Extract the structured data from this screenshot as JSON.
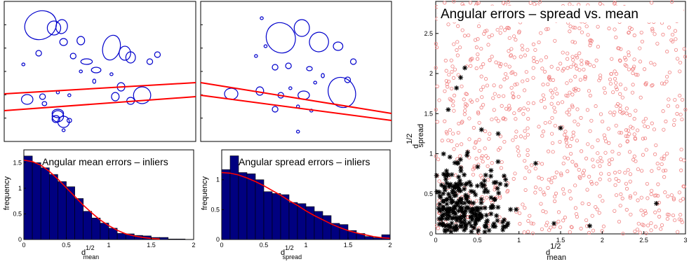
{
  "colors": {
    "ellipse": "#0000cc",
    "line": "#ff0000",
    "bar": "#000080",
    "bar_edge": "#000000",
    "outlier": "#f08080",
    "inlier": "#000000"
  },
  "chart_data": [
    {
      "id": "ellipses-left",
      "type": "scatter",
      "title": "",
      "xlabel": "",
      "ylabel": "",
      "xlim": [
        0,
        1
      ],
      "ylim": [
        0,
        1
      ],
      "ellipses": [
        {
          "cx": 0.19,
          "cy": 0.83,
          "rx": 0.085,
          "ry": 0.1,
          "rot": -25
        },
        {
          "cx": 0.26,
          "cy": 0.81,
          "rx": 0.035,
          "ry": 0.05,
          "rot": 0
        },
        {
          "cx": 0.3,
          "cy": 0.82,
          "rx": 0.03,
          "ry": 0.05,
          "rot": 10
        },
        {
          "cx": 0.31,
          "cy": 0.71,
          "rx": 0.02,
          "ry": 0.025,
          "rot": 0
        },
        {
          "cx": 0.4,
          "cy": 0.72,
          "rx": 0.02,
          "ry": 0.03,
          "rot": 0
        },
        {
          "cx": 0.36,
          "cy": 0.61,
          "rx": 0.015,
          "ry": 0.02,
          "rot": 0
        },
        {
          "cx": 0.18,
          "cy": 0.63,
          "rx": 0.015,
          "ry": 0.02,
          "rot": 0
        },
        {
          "cx": 0.1,
          "cy": 0.55,
          "rx": 0.008,
          "ry": 0.01,
          "rot": 0
        },
        {
          "cx": 0.56,
          "cy": 0.67,
          "rx": 0.045,
          "ry": 0.09,
          "rot": 15
        },
        {
          "cx": 0.63,
          "cy": 0.63,
          "rx": 0.03,
          "ry": 0.05,
          "rot": 0
        },
        {
          "cx": 0.66,
          "cy": 0.6,
          "rx": 0.025,
          "ry": 0.04,
          "rot": 0
        },
        {
          "cx": 0.76,
          "cy": 0.57,
          "rx": 0.015,
          "ry": 0.02,
          "rot": 0
        },
        {
          "cx": 0.8,
          "cy": 0.62,
          "rx": 0.015,
          "ry": 0.02,
          "rot": 0
        },
        {
          "cx": 0.43,
          "cy": 0.57,
          "rx": 0.03,
          "ry": 0.02,
          "rot": 0
        },
        {
          "cx": 0.48,
          "cy": 0.51,
          "rx": 0.025,
          "ry": 0.02,
          "rot": 0
        },
        {
          "cx": 0.4,
          "cy": 0.5,
          "rx": 0.008,
          "ry": 0.01,
          "rot": 0
        },
        {
          "cx": 0.56,
          "cy": 0.48,
          "rx": 0.008,
          "ry": 0.01,
          "rot": 0
        },
        {
          "cx": 0.47,
          "cy": 0.43,
          "rx": 0.008,
          "ry": 0.015,
          "rot": 0
        },
        {
          "cx": 0.61,
          "cy": 0.39,
          "rx": 0.02,
          "ry": 0.03,
          "rot": 0
        },
        {
          "cx": 0.66,
          "cy": 0.29,
          "rx": 0.02,
          "ry": 0.025,
          "rot": 0
        },
        {
          "cx": 0.72,
          "cy": 0.33,
          "rx": 0.045,
          "ry": 0.06,
          "rot": 0
        },
        {
          "cx": 0.58,
          "cy": 0.32,
          "rx": 0.02,
          "ry": 0.03,
          "rot": 0
        },
        {
          "cx": 0.12,
          "cy": 0.3,
          "rx": 0.03,
          "ry": 0.035,
          "rot": 0
        },
        {
          "cx": 0.2,
          "cy": 0.32,
          "rx": 0.015,
          "ry": 0.02,
          "rot": 0
        },
        {
          "cx": 0.21,
          "cy": 0.27,
          "rx": 0.012,
          "ry": 0.015,
          "rot": 0
        },
        {
          "cx": 0.28,
          "cy": 0.35,
          "rx": 0.008,
          "ry": 0.01,
          "rot": 0
        },
        {
          "cx": 0.34,
          "cy": 0.33,
          "rx": 0.008,
          "ry": 0.01,
          "rot": 0
        },
        {
          "cx": 0.27,
          "cy": 0.16,
          "rx": 0.02,
          "ry": 0.025,
          "rot": 0
        },
        {
          "cx": 0.34,
          "cy": 0.15,
          "rx": 0.012,
          "ry": 0.015,
          "rot": 0
        },
        {
          "cx": 0.31,
          "cy": 0.08,
          "rx": 0.008,
          "ry": 0.01,
          "rot": 0
        },
        {
          "cx": 0.28,
          "cy": 0.18,
          "rx": 0.03,
          "ry": 0.04,
          "rot": 0
        },
        {
          "cx": 0.31,
          "cy": 0.14,
          "rx": 0.03,
          "ry": 0.04,
          "rot": 0
        },
        {
          "cx": 0.28,
          "cy": 0.2,
          "rx": 0.03,
          "ry": 0.03,
          "rot": 0
        }
      ],
      "lines": [
        {
          "x": [
            0,
            1
          ],
          "y": [
            0.34,
            0.42
          ]
        },
        {
          "x": [
            0,
            1
          ],
          "y": [
            0.22,
            0.32
          ]
        }
      ]
    },
    {
      "id": "ellipses-right",
      "type": "scatter",
      "title": "",
      "xlabel": "",
      "ylabel": "",
      "xlim": [
        0,
        1
      ],
      "ylim": [
        0,
        1
      ],
      "ellipses": [
        {
          "cx": 0.32,
          "cy": 0.88,
          "rx": 0.008,
          "ry": 0.01,
          "rot": 0
        },
        {
          "cx": 0.42,
          "cy": 0.74,
          "rx": 0.075,
          "ry": 0.11,
          "rot": -30
        },
        {
          "cx": 0.53,
          "cy": 0.81,
          "rx": 0.04,
          "ry": 0.06,
          "rot": 0
        },
        {
          "cx": 0.62,
          "cy": 0.71,
          "rx": 0.05,
          "ry": 0.07,
          "rot": 20
        },
        {
          "cx": 0.72,
          "cy": 0.68,
          "rx": 0.025,
          "ry": 0.03,
          "rot": 0
        },
        {
          "cx": 0.8,
          "cy": 0.57,
          "rx": 0.015,
          "ry": 0.02,
          "rot": 0
        },
        {
          "cx": 0.34,
          "cy": 0.68,
          "rx": 0.008,
          "ry": 0.01,
          "rot": 0
        },
        {
          "cx": 0.29,
          "cy": 0.61,
          "rx": 0.008,
          "ry": 0.01,
          "rot": 0
        },
        {
          "cx": 0.39,
          "cy": 0.53,
          "rx": 0.015,
          "ry": 0.02,
          "rot": 0
        },
        {
          "cx": 0.46,
          "cy": 0.54,
          "rx": 0.015,
          "ry": 0.02,
          "rot": 0
        },
        {
          "cx": 0.57,
          "cy": 0.52,
          "rx": 0.015,
          "ry": 0.015,
          "rot": 0
        },
        {
          "cx": 0.64,
          "cy": 0.47,
          "rx": 0.008,
          "ry": 0.015,
          "rot": 0
        },
        {
          "cx": 0.74,
          "cy": 0.35,
          "rx": 0.07,
          "ry": 0.11,
          "rot": -25
        },
        {
          "cx": 0.16,
          "cy": 0.34,
          "rx": 0.035,
          "ry": 0.04,
          "rot": 0
        },
        {
          "cx": 0.31,
          "cy": 0.36,
          "rx": 0.02,
          "ry": 0.03,
          "rot": 0
        },
        {
          "cx": 0.42,
          "cy": 0.33,
          "rx": 0.015,
          "ry": 0.02,
          "rot": 0
        },
        {
          "cx": 0.47,
          "cy": 0.38,
          "rx": 0.008,
          "ry": 0.01,
          "rot": 0
        },
        {
          "cx": 0.54,
          "cy": 0.33,
          "rx": 0.03,
          "ry": 0.03,
          "rot": 0
        },
        {
          "cx": 0.6,
          "cy": 0.42,
          "rx": 0.008,
          "ry": 0.01,
          "rot": 0
        },
        {
          "cx": 0.39,
          "cy": 0.23,
          "rx": 0.015,
          "ry": 0.02,
          "rot": 0
        },
        {
          "cx": 0.51,
          "cy": 0.25,
          "rx": 0.008,
          "ry": 0.01,
          "rot": 0
        },
        {
          "cx": 0.58,
          "cy": 0.22,
          "rx": 0.008,
          "ry": 0.01,
          "rot": 0
        },
        {
          "cx": 0.51,
          "cy": 0.07,
          "rx": 0.008,
          "ry": 0.01,
          "rot": 0
        },
        {
          "cx": 0.77,
          "cy": 0.44,
          "rx": 0.015,
          "ry": 0.02,
          "rot": 0
        }
      ],
      "lines": [
        {
          "x": [
            0,
            1
          ],
          "y": [
            0.42,
            0.2
          ]
        },
        {
          "x": [
            0,
            1
          ],
          "y": [
            0.33,
            0.15
          ]
        }
      ]
    },
    {
      "id": "hist-mean",
      "type": "bar",
      "title": "Angular mean errors – inliers",
      "xlabel": "d",
      "xlabel_sup": "1/2",
      "xlabel_sub": "mean",
      "ylabel": "frequency",
      "xlim": [
        0,
        2
      ],
      "ylim": [
        0,
        1.75
      ],
      "xticks": [
        "0",
        "0.5",
        "1",
        "1.5",
        "2"
      ],
      "yticks": [
        "0",
        "0.5",
        "1",
        "1.5"
      ],
      "bin_width": 0.1,
      "bins": [
        0.05,
        0.15,
        0.25,
        0.35,
        0.45,
        0.55,
        0.65,
        0.75,
        0.85,
        0.95,
        1.05,
        1.15,
        1.25,
        1.35,
        1.45,
        1.55,
        1.65,
        1.75,
        1.85,
        1.95
      ],
      "values": [
        1.63,
        1.5,
        1.4,
        1.27,
        1.13,
        1.03,
        0.8,
        0.55,
        0.42,
        0.32,
        0.22,
        0.12,
        0.11,
        0.08,
        0.07,
        0.04,
        0.04,
        0.01,
        0.01,
        0
      ],
      "fit_curve": {
        "x": [
          0,
          0.1,
          0.2,
          0.3,
          0.4,
          0.5,
          0.6,
          0.7,
          0.8,
          0.9,
          1.0,
          1.1,
          1.2,
          1.3,
          1.4,
          1.5,
          1.6
        ],
        "y": [
          1.55,
          1.52,
          1.45,
          1.33,
          1.18,
          1.01,
          0.84,
          0.67,
          0.52,
          0.38,
          0.27,
          0.18,
          0.11,
          0.07,
          0.04,
          0.02,
          0.01
        ]
      }
    },
    {
      "id": "hist-spread",
      "type": "bar",
      "title": "Angular spread errors – inliers",
      "xlabel": "d",
      "xlabel_sup": "1/2",
      "xlabel_sub": "spread",
      "ylabel": "frequency",
      "xlim": [
        0,
        2
      ],
      "ylim": [
        0,
        1.5
      ],
      "xticks": [
        "0",
        "0.5",
        "1",
        "1.5",
        "2"
      ],
      "yticks": [
        "0",
        "0.5",
        "1"
      ],
      "bin_width": 0.1,
      "bins": [
        0.05,
        0.15,
        0.25,
        0.35,
        0.45,
        0.55,
        0.65,
        0.75,
        0.85,
        0.95,
        1.05,
        1.15,
        1.25,
        1.35,
        1.45,
        1.55,
        1.65,
        1.75,
        1.85,
        1.95
      ],
      "values": [
        1.17,
        1.4,
        1.12,
        1.1,
        1.0,
        0.8,
        0.77,
        0.75,
        0.62,
        0.6,
        0.55,
        0.47,
        0.4,
        0.27,
        0.25,
        0.15,
        0.1,
        0.05,
        0.03,
        0.08
      ],
      "fit_curve": {
        "x": [
          0,
          0.1,
          0.2,
          0.3,
          0.4,
          0.5,
          0.6,
          0.7,
          0.8,
          0.9,
          1.0,
          1.1,
          1.2,
          1.3,
          1.4,
          1.5,
          1.6,
          1.7,
          1.8,
          1.9,
          2.0
        ],
        "y": [
          1.12,
          1.11,
          1.08,
          1.03,
          0.97,
          0.9,
          0.82,
          0.74,
          0.65,
          0.57,
          0.48,
          0.4,
          0.33,
          0.26,
          0.2,
          0.15,
          0.11,
          0.08,
          0.05,
          0.03,
          0.02
        ]
      }
    },
    {
      "id": "scatter-spread-vs-mean",
      "type": "scatter",
      "title": "Angular errors – spread vs. mean",
      "xlabel": "d",
      "xlabel_sup": "1/2",
      "xlabel_sub": "mean",
      "ylabel": "d",
      "ylabel_sup": "1/2",
      "ylabel_sub": "spread",
      "xlim": [
        0,
        3
      ],
      "ylim": [
        0,
        2.9
      ],
      "xticks": [
        "0",
        "0.5",
        "1",
        "1.5",
        "2",
        "2.5",
        "3"
      ],
      "yticks": [
        "0",
        "0.5",
        "1",
        "1.5",
        "2",
        "2.5"
      ],
      "series": [
        {
          "marker": "circle",
          "count": 900,
          "seed": 7,
          "x_range": [
            0,
            3
          ],
          "y_range": [
            0,
            2.9
          ]
        },
        {
          "marker": "star",
          "count": 260,
          "seed": 11,
          "x_scale": 0.55,
          "y_scale": 0.55,
          "x_max": 1.6,
          "y_max": 1.4,
          "extra": [
            [
              0.35,
              2.07
            ],
            [
              0.3,
              1.95
            ],
            [
              0.25,
              1.82
            ],
            [
              0.15,
              1.55
            ],
            [
              1.5,
              1.32
            ],
            [
              2.65,
              0.38
            ],
            [
              1.2,
              0.88
            ],
            [
              1.42,
              0.13
            ],
            [
              1.85,
              0.1
            ],
            [
              0.55,
              1.3
            ],
            [
              0.75,
              1.25
            ]
          ]
        }
      ]
    }
  ]
}
